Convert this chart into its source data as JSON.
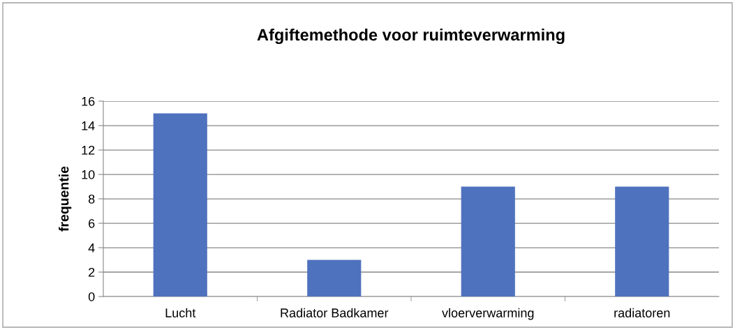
{
  "chart_data": {
    "type": "bar",
    "title": "Afgiftemethode voor ruimteverwarming",
    "ylabel": "frequentie",
    "categories": [
      "Lucht",
      "Radiator Badkamer",
      "vloerverwarming",
      "radiatoren"
    ],
    "values": [
      15,
      3,
      9,
      9
    ],
    "color": "#4f72be",
    "ylim": [
      0,
      16
    ],
    "yticks": [
      0,
      2,
      4,
      6,
      8,
      10,
      12,
      14,
      16
    ],
    "grid": "y",
    "legend": false
  }
}
